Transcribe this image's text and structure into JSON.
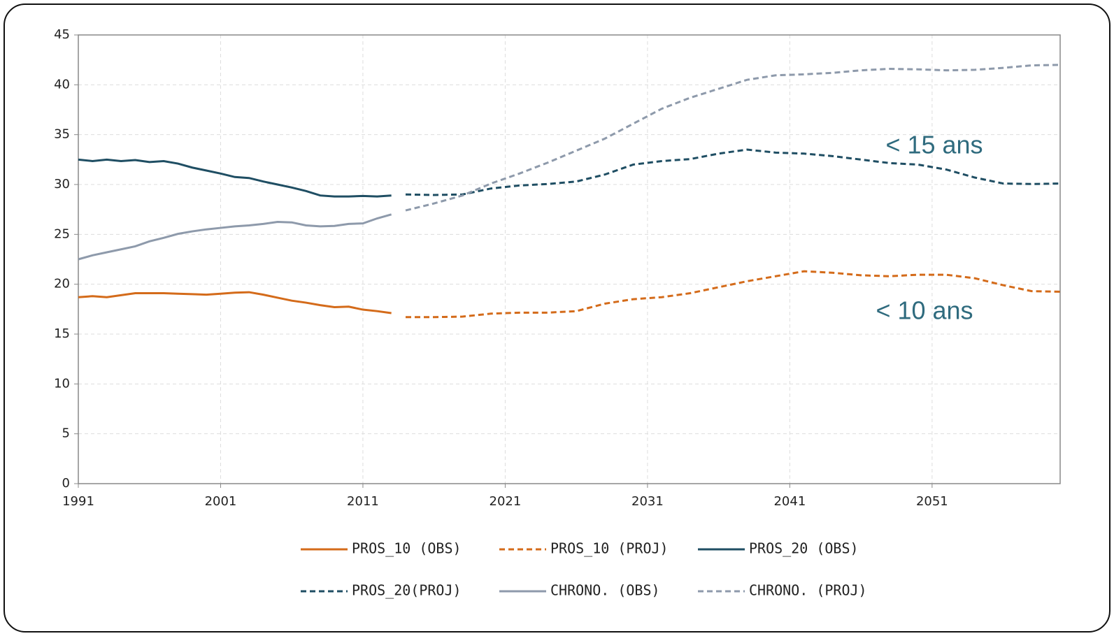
{
  "chart_data": {
    "type": "line",
    "xlim": [
      1991,
      2060
    ],
    "xticks": [
      1991,
      2001,
      2011,
      2021,
      2031,
      2041,
      2051
    ],
    "ylim": [
      0,
      45
    ],
    "yticks": [
      0,
      5,
      10,
      15,
      20,
      25,
      30,
      35,
      40,
      45
    ],
    "grid": true,
    "legend": "bottom",
    "annotations": [
      "< 15 ans",
      "< 10 ans"
    ],
    "series": [
      {
        "name": "PROS_10 (OBS)",
        "color": "#d46b1a",
        "dashed": false,
        "x": [
          1991,
          1992,
          1993,
          1994,
          1995,
          1996,
          1997,
          1998,
          1999,
          2000,
          2001,
          2002,
          2003,
          2004,
          2005,
          2006,
          2007,
          2008,
          2009,
          2010,
          2011,
          2012,
          2013
        ],
        "values": [
          18.7,
          18.8,
          18.7,
          18.9,
          19.1,
          19.1,
          19.1,
          19.05,
          19.0,
          18.95,
          19.05,
          19.15,
          19.2,
          18.95,
          18.65,
          18.35,
          18.15,
          17.9,
          17.7,
          17.75,
          17.45,
          17.3,
          17.1
        ]
      },
      {
        "name": "PROS_10 (PROJ)",
        "color": "#d46b1a",
        "dashed": true,
        "x": [
          2014,
          2016,
          2018,
          2020,
          2022,
          2024,
          2026,
          2028,
          2030,
          2032,
          2034,
          2036,
          2038,
          2040,
          2042,
          2044,
          2046,
          2048,
          2050,
          2052,
          2054,
          2056,
          2058,
          2060
        ],
        "values": [
          16.7,
          16.7,
          16.75,
          17.05,
          17.15,
          17.15,
          17.3,
          18.05,
          18.5,
          18.7,
          19.1,
          19.7,
          20.3,
          20.8,
          21.3,
          21.15,
          20.9,
          20.8,
          20.95,
          20.95,
          20.6,
          19.9,
          19.3,
          19.25
        ]
      },
      {
        "name": "PROS_20 (OBS)",
        "color": "#1f4e63",
        "dashed": false,
        "x": [
          1991,
          1992,
          1993,
          1994,
          1995,
          1996,
          1997,
          1998,
          1999,
          2000,
          2001,
          2002,
          2003,
          2004,
          2005,
          2006,
          2007,
          2008,
          2009,
          2010,
          2011,
          2012,
          2013
        ],
        "values": [
          32.5,
          32.35,
          32.5,
          32.35,
          32.45,
          32.25,
          32.35,
          32.1,
          31.7,
          31.4,
          31.1,
          30.75,
          30.65,
          30.3,
          30.0,
          29.7,
          29.35,
          28.9,
          28.8,
          28.8,
          28.85,
          28.8,
          28.9
        ]
      },
      {
        "name": "PROS_20(PROJ)",
        "color": "#1f4e63",
        "dashed": true,
        "x": [
          2014,
          2016,
          2018,
          2020,
          2022,
          2024,
          2026,
          2028,
          2030,
          2032,
          2034,
          2036,
          2038,
          2040,
          2042,
          2044,
          2046,
          2048,
          2050,
          2052,
          2054,
          2056,
          2058,
          2060
        ],
        "values": [
          29.0,
          28.95,
          29.0,
          29.6,
          29.9,
          30.05,
          30.3,
          31.0,
          32.0,
          32.35,
          32.55,
          33.1,
          33.5,
          33.2,
          33.1,
          32.85,
          32.5,
          32.15,
          32.0,
          31.5,
          30.7,
          30.1,
          30.05,
          30.1
        ]
      },
      {
        "name": "CHRONO. (OBS)",
        "color": "#8e9aab",
        "dashed": false,
        "x": [
          1991,
          1992,
          1993,
          1994,
          1995,
          1996,
          1997,
          1998,
          1999,
          2000,
          2001,
          2002,
          2003,
          2004,
          2005,
          2006,
          2007,
          2008,
          2009,
          2010,
          2011,
          2012,
          2013
        ],
        "values": [
          22.5,
          22.9,
          23.2,
          23.5,
          23.8,
          24.3,
          24.65,
          25.05,
          25.3,
          25.5,
          25.65,
          25.8,
          25.9,
          26.05,
          26.25,
          26.2,
          25.9,
          25.8,
          25.85,
          26.05,
          26.1,
          26.6,
          27.0
        ]
      },
      {
        "name": "CHRONO. (PROJ)",
        "color": "#8e9aab",
        "dashed": true,
        "x": [
          2014,
          2016,
          2018,
          2020,
          2022,
          2024,
          2026,
          2028,
          2030,
          2032,
          2034,
          2036,
          2038,
          2040,
          2042,
          2044,
          2046,
          2048,
          2050,
          2052,
          2054,
          2056,
          2058,
          2060
        ],
        "values": [
          27.4,
          28.1,
          28.9,
          30.1,
          31.1,
          32.2,
          33.4,
          34.6,
          36.1,
          37.6,
          38.7,
          39.6,
          40.5,
          40.95,
          41.05,
          41.2,
          41.45,
          41.6,
          41.55,
          41.45,
          41.5,
          41.7,
          41.95,
          42.0
        ]
      }
    ]
  }
}
